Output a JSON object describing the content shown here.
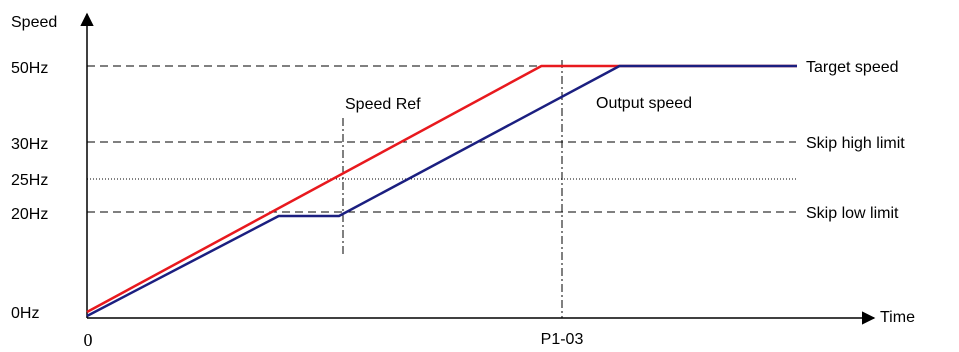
{
  "chart_data": {
    "type": "line",
    "xlabel": "Time",
    "ylabel": "Speed",
    "x_origin_label": "0",
    "x_tick_label": "P1-03",
    "y_ticks": [
      {
        "value": 0,
        "label": "0Hz"
      },
      {
        "value": 20,
        "label": "20Hz"
      },
      {
        "value": 25,
        "label": "25Hz"
      },
      {
        "value": 30,
        "label": "30Hz"
      },
      {
        "value": 50,
        "label": "50Hz"
      }
    ],
    "reference_lines": [
      {
        "value": 50,
        "label": "Target speed",
        "style": "dashed"
      },
      {
        "value": 30,
        "label": "Skip high limit",
        "style": "dashed"
      },
      {
        "value": 25,
        "label": "",
        "style": "dotted"
      },
      {
        "value": 20,
        "label": "Skip low limit",
        "style": "dashed"
      }
    ],
    "annotations": [
      {
        "text": "Speed Ref"
      },
      {
        "text": "Output speed"
      }
    ],
    "series": [
      {
        "color": "#e8191e",
        "points": [
          [
            0,
            0.8
          ],
          [
            6.4,
            50
          ],
          [
            10,
            50
          ]
        ]
      },
      {
        "color": "#1b1f80",
        "points": [
          [
            0,
            0
          ],
          [
            2.7,
            20
          ],
          [
            3.55,
            20
          ],
          [
            7.5,
            50
          ],
          [
            10,
            50
          ]
        ]
      }
    ],
    "xlim": [
      0,
      10
    ],
    "ylim": [
      0,
      50
    ],
    "grid": false,
    "legend": "none",
    "colors": {
      "axis": "#000000",
      "speed_ref": "#e8191e",
      "output_speed": "#1b1f80"
    }
  }
}
